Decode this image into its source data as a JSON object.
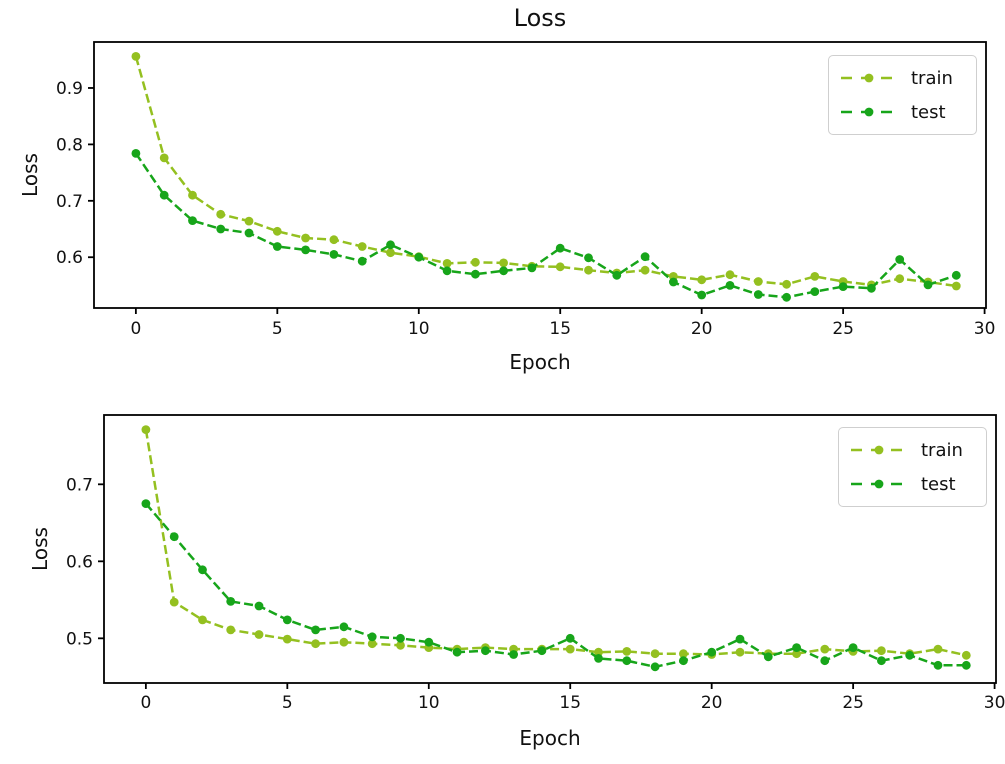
{
  "figure": {
    "background": "#ffffff",
    "title": "Loss"
  },
  "chart_data": [
    {
      "id": "top",
      "type": "line",
      "title": "Loss",
      "xlabel": "Epoch",
      "ylabel": "Loss",
      "grid": false,
      "legend_position": "upper right",
      "xlim": [
        -1.48,
        30.05
      ],
      "ylim": [
        0.51,
        0.9815
      ],
      "xticks": {
        "values": [
          0,
          5,
          10,
          15,
          20,
          25,
          30
        ],
        "labels": [
          "0",
          "5",
          "10",
          "15",
          "20",
          "25",
          "30"
        ]
      },
      "yticks": {
        "values": [
          0.6,
          0.7,
          0.8,
          0.9
        ],
        "labels": [
          "0.6",
          "0.7",
          "0.8",
          "0.9"
        ]
      },
      "x": [
        0,
        1,
        2,
        3,
        4,
        5,
        6,
        7,
        8,
        9,
        10,
        11,
        12,
        13,
        14,
        15,
        16,
        17,
        18,
        19,
        20,
        21,
        22,
        23,
        24,
        25,
        26,
        27,
        28,
        29
      ],
      "series": [
        {
          "name": "train",
          "color": "#94c020",
          "linestyle": "dashed",
          "marker": "o",
          "values": [
            0.956,
            0.776,
            0.71,
            0.676,
            0.664,
            0.646,
            0.634,
            0.631,
            0.619,
            0.608,
            0.601,
            0.589,
            0.591,
            0.59,
            0.584,
            0.583,
            0.577,
            0.572,
            0.577,
            0.566,
            0.56,
            0.569,
            0.557,
            0.552,
            0.566,
            0.557,
            0.551,
            0.562,
            0.556,
            0.549
          ]
        },
        {
          "name": "test",
          "color": "#17a51a",
          "linestyle": "dashed",
          "marker": "o",
          "values": [
            0.784,
            0.71,
            0.665,
            0.65,
            0.643,
            0.619,
            0.613,
            0.605,
            0.593,
            0.622,
            0.6,
            0.576,
            0.57,
            0.576,
            0.581,
            0.616,
            0.599,
            0.568,
            0.601,
            0.556,
            0.533,
            0.55,
            0.534,
            0.529,
            0.539,
            0.548,
            0.545,
            0.596,
            0.551,
            0.568
          ]
        }
      ]
    },
    {
      "id": "bottom",
      "type": "line",
      "title": "",
      "xlabel": "Epoch",
      "ylabel": "Loss",
      "grid": false,
      "legend_position": "upper right",
      "xlim": [
        -1.48,
        30.05
      ],
      "ylim": [
        0.442,
        0.79
      ],
      "xticks": {
        "values": [
          0,
          5,
          10,
          15,
          20,
          25,
          30
        ],
        "labels": [
          "0",
          "5",
          "10",
          "15",
          "20",
          "25",
          "30"
        ]
      },
      "yticks": {
        "values": [
          0.5,
          0.6,
          0.7
        ],
        "labels": [
          "0.5",
          "0.6",
          "0.7"
        ]
      },
      "x": [
        0,
        1,
        2,
        3,
        4,
        5,
        6,
        7,
        8,
        9,
        10,
        11,
        12,
        13,
        14,
        15,
        16,
        17,
        18,
        19,
        20,
        21,
        22,
        23,
        24,
        25,
        26,
        27,
        28,
        29
      ],
      "series": [
        {
          "name": "train",
          "color": "#94c020",
          "linestyle": "dashed",
          "marker": "o",
          "values": [
            0.771,
            0.547,
            0.524,
            0.511,
            0.505,
            0.499,
            0.493,
            0.495,
            0.493,
            0.491,
            0.488,
            0.486,
            0.488,
            0.486,
            0.486,
            0.486,
            0.482,
            0.483,
            0.48,
            0.48,
            0.479,
            0.482,
            0.48,
            0.48,
            0.486,
            0.483,
            0.484,
            0.48,
            0.486,
            0.478
          ]
        },
        {
          "name": "test",
          "color": "#17a51a",
          "linestyle": "dashed",
          "marker": "o",
          "values": [
            0.675,
            0.632,
            0.589,
            0.548,
            0.542,
            0.524,
            0.511,
            0.515,
            0.502,
            0.5,
            0.495,
            0.482,
            0.484,
            0.479,
            0.484,
            0.5,
            0.474,
            0.471,
            0.463,
            0.471,
            0.482,
            0.499,
            0.476,
            0.488,
            0.471,
            0.488,
            0.471,
            0.478,
            0.465,
            0.465
          ]
        }
      ]
    }
  ]
}
